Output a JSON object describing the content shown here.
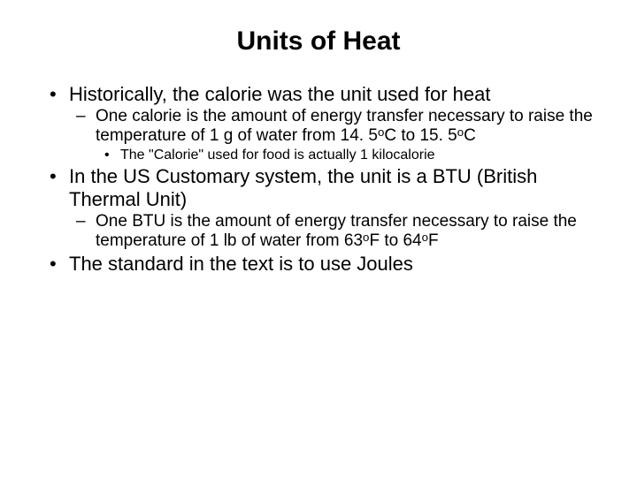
{
  "title": "Units of Heat",
  "bullets": {
    "b1": "Historically, the calorie was the unit used for heat",
    "b1_sub1_pre": "One calorie is the amount of energy transfer necessary to raise the temperature of 1 g of water from 14. 5",
    "b1_sub1_mid": "C to 15. 5",
    "b1_sub1_post": "C",
    "sup_o": "o",
    "b1_sub1_sub1": "The \"Calorie\" used for food is actually 1 kilocalorie",
    "b2": "In the US Customary system, the unit is a BTU (British Thermal Unit)",
    "b2_sub1_pre": "One BTU is the amount of energy transfer necessary to raise the temperature of 1 lb of water from 63",
    "b2_sub1_mid": "F to 64",
    "b2_sub1_post": "F",
    "b3": "The standard in the text is to use Joules"
  },
  "styling": {
    "background_color": "#ffffff",
    "text_color": "#000000",
    "title_fontsize": 30,
    "level1_fontsize": 22,
    "level2_fontsize": 19,
    "level3_fontsize": 16,
    "font_family": "Arial"
  }
}
